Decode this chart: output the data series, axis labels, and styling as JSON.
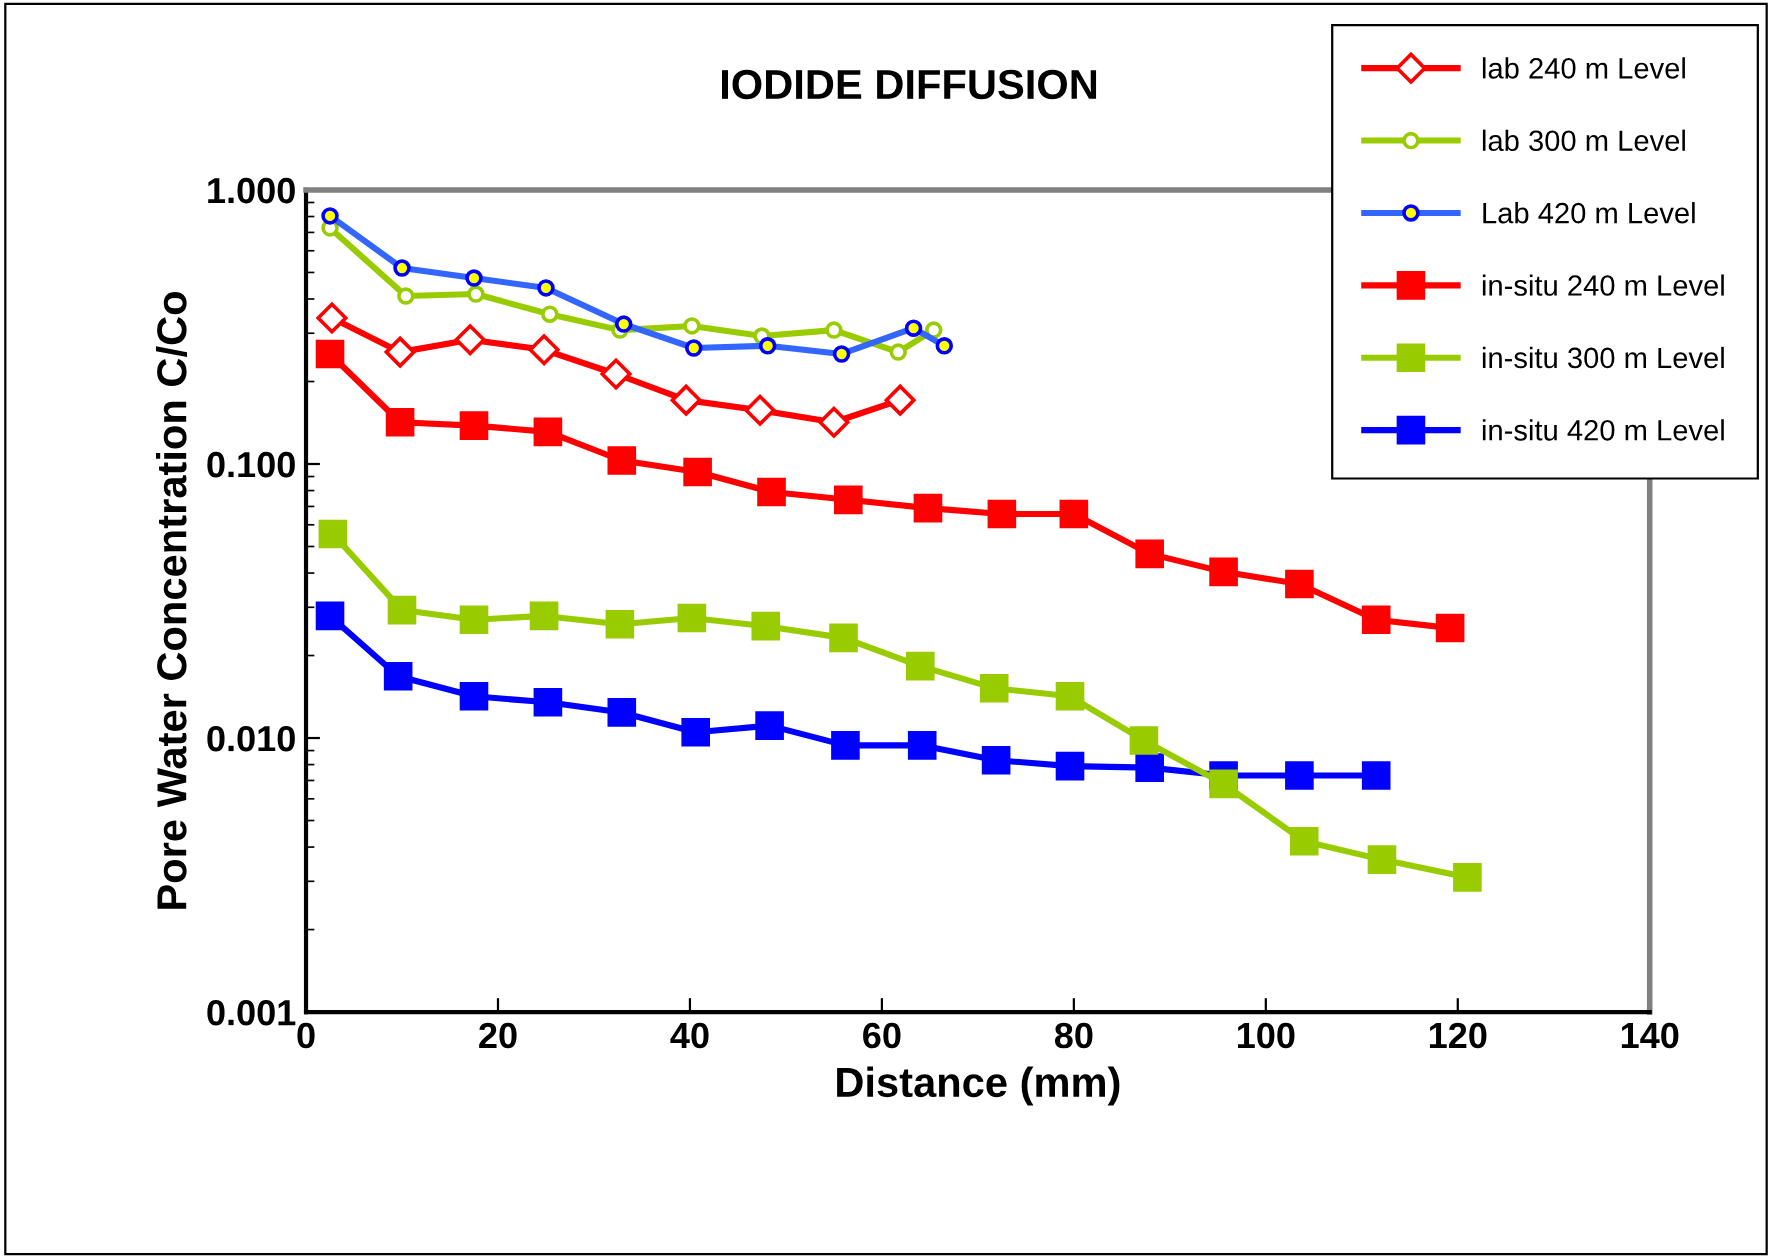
{
  "chart_data": {
    "type": "line",
    "title": "IODIDE DIFFUSION",
    "xlabel": "Distance (mm)",
    "ylabel": "Pore Water Concentration C/Co",
    "log": "y",
    "xlim": [
      0,
      140
    ],
    "xticks": [
      0,
      20,
      40,
      60,
      80,
      100,
      120,
      140
    ],
    "ylim": [
      0.001,
      1
    ],
    "yticks": [
      {
        "value": 0.001,
        "label": "0.001"
      },
      {
        "value": 0.01,
        "label": "0.010"
      },
      {
        "value": 0.1,
        "label": "0.100"
      },
      {
        "value": 1,
        "label": "1.000"
      }
    ],
    "grid": false,
    "legend": "top right",
    "series": [
      {
        "name": "lab 240 m Level",
        "color": "#ff0000",
        "marker": "diamond",
        "x": [
          2.7,
          9.8,
          17.1,
          24.8,
          32.3,
          39.6,
          47.3,
          55,
          61.9
        ],
        "values": [
          0.341,
          0.256,
          0.284,
          0.261,
          0.213,
          0.171,
          0.157,
          0.142,
          0.171
        ]
      },
      {
        "name": "lab 300 m Level",
        "color": "#99cc00",
        "marker": "circle",
        "x": [
          2.5,
          10.4,
          17.7,
          25.4,
          32.7,
          40.2,
          47.5,
          55,
          61.7,
          65.4
        ],
        "values": [
          0.727,
          0.41,
          0.417,
          0.352,
          0.308,
          0.319,
          0.293,
          0.308,
          0.256,
          0.308
        ]
      },
      {
        "name": "Lab 420 m Level",
        "color": "#3366ff",
        "marker": "circle",
        "x": [
          2.5,
          10,
          17.5,
          25,
          33.1,
          40.4,
          48.1,
          55.8,
          63.3,
          66.5
        ],
        "values": [
          0.804,
          0.519,
          0.477,
          0.439,
          0.324,
          0.265,
          0.27,
          0.252,
          0.313,
          0.27
        ]
      },
      {
        "name": "in-situ 240 m Level",
        "color": "#ff0000",
        "marker": "square",
        "x": [
          2.5,
          9.8,
          17.5,
          25.2,
          32.9,
          40.8,
          48.5,
          56.5,
          64.8,
          72.5,
          80,
          87.9,
          95.6,
          103.5,
          111.5,
          119.2
        ],
        "values": [
          0.252,
          0.142,
          0.138,
          0.131,
          0.103,
          0.0935,
          0.079,
          0.074,
          0.069,
          0.0657,
          0.0657,
          0.047,
          0.0404,
          0.0365,
          0.027,
          0.0252
        ]
      },
      {
        "name": "in-situ 300 m Level",
        "color": "#99cc00",
        "marker": "square",
        "x": [
          2.8,
          10,
          17.5,
          24.8,
          32.7,
          40.2,
          47.9,
          56,
          64,
          71.7,
          79.6,
          87.3,
          95.6,
          104,
          112.1,
          121
        ],
        "values": [
          0.0555,
          0.0293,
          0.027,
          0.0279,
          0.026,
          0.0274,
          0.0256,
          0.0232,
          0.0183,
          0.0152,
          0.0142,
          0.0098,
          0.0068,
          0.0042,
          0.0036,
          0.0031
        ]
      },
      {
        "name": "in-situ 420 m Level",
        "color": "#0000ff",
        "marker": "square",
        "x": [
          2.5,
          9.6,
          17.5,
          25.2,
          32.9,
          40.6,
          48.3,
          56.2,
          64.2,
          71.9,
          79.6,
          87.9,
          95.6,
          103.5,
          111.5
        ],
        "values": [
          0.0279,
          0.0168,
          0.0142,
          0.0135,
          0.0124,
          0.0105,
          0.0111,
          0.0094,
          0.0094,
          0.0083,
          0.0079,
          0.0078,
          0.0073,
          0.0073,
          0.0073
        ]
      }
    ]
  }
}
